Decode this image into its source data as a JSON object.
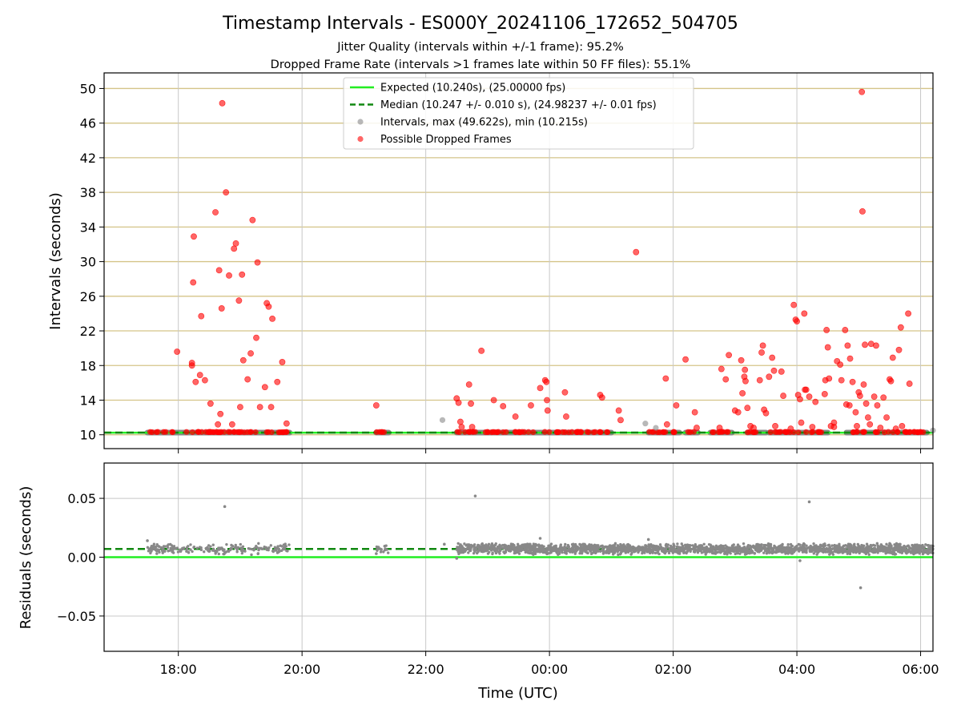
{
  "title": "Timestamp Intervals - ES000Y_20241106_172652_504705",
  "subtitle1": "Jitter Quality (intervals within +/-1 frame): 95.2%",
  "subtitle2": "Dropped Frame Rate (intervals >1 frames late within 50 FF files): 55.1%",
  "colors": {
    "expected": "#22ee22",
    "median": "#118811",
    "intervals": "#888888",
    "dropped": "#ff0000",
    "hgrid": "#d4c488",
    "vgrid": "#c8c8c8"
  },
  "chart_data": [
    {
      "type": "scatter",
      "panel": "top",
      "ylabel": "Intervals (seconds)",
      "ylim": [
        8.4,
        51.8
      ],
      "yticks": [
        "10",
        "14",
        "18",
        "22",
        "26",
        "30",
        "34",
        "38",
        "42",
        "46",
        "50"
      ],
      "xlim_hours": [
        16.8,
        30.2
      ],
      "xticks": [
        "18:00",
        "20:00",
        "22:00",
        "00:00",
        "02:00",
        "04:00",
        "06:00"
      ],
      "grid": "horizontal gold, vertical gray",
      "legend_position": "top-center",
      "legend": [
        "Expected (10.240s), (25.00000 fps)",
        "Median (10.247 +/- 0.010 s), (24.98237 +/- 0.01 fps)",
        "Intervals, max (49.622s), min (10.215s)",
        "Possible Dropped Frames"
      ],
      "expected": 10.24,
      "median": 10.247,
      "baseline_segments_hours": [
        [
          17.5,
          17.9
        ],
        [
          17.9,
          19.8
        ],
        [
          21.2,
          21.4
        ],
        [
          22.5,
          25.0
        ],
        [
          25.6,
          26.1
        ],
        [
          26.2,
          26.4
        ],
        [
          26.6,
          26.95
        ],
        [
          27.2,
          27.5
        ],
        [
          27.55,
          28.5
        ],
        [
          28.8,
          30.1
        ]
      ],
      "intervals_gray": [
        [
          22.27,
          11.7
        ],
        [
          25.55,
          11.3
        ],
        [
          25.72,
          10.8
        ],
        [
          30.2,
          10.5
        ]
      ],
      "dropped_points": [
        [
          17.98,
          19.6
        ],
        [
          18.22,
          18.3
        ],
        [
          18.22,
          18.0
        ],
        [
          18.24,
          27.6
        ],
        [
          18.25,
          32.9
        ],
        [
          18.28,
          16.1
        ],
        [
          18.35,
          16.9
        ],
        [
          18.37,
          23.7
        ],
        [
          18.43,
          16.3
        ],
        [
          18.52,
          13.6
        ],
        [
          18.6,
          35.7
        ],
        [
          18.64,
          11.2
        ],
        [
          18.66,
          29.0
        ],
        [
          18.68,
          12.4
        ],
        [
          18.7,
          24.6
        ],
        [
          18.71,
          48.3
        ],
        [
          18.77,
          38.0
        ],
        [
          18.82,
          28.4
        ],
        [
          18.87,
          11.2
        ],
        [
          18.9,
          31.5
        ],
        [
          18.93,
          32.1
        ],
        [
          18.98,
          25.5
        ],
        [
          19.0,
          13.2
        ],
        [
          19.03,
          28.5
        ],
        [
          19.05,
          18.6
        ],
        [
          19.12,
          16.4
        ],
        [
          19.17,
          19.4
        ],
        [
          19.2,
          34.8
        ],
        [
          19.26,
          21.2
        ],
        [
          19.28,
          29.9
        ],
        [
          19.32,
          13.2
        ],
        [
          19.4,
          15.5
        ],
        [
          19.43,
          25.2
        ],
        [
          19.46,
          24.8
        ],
        [
          19.5,
          13.2
        ],
        [
          19.52,
          23.4
        ],
        [
          19.6,
          16.1
        ],
        [
          19.68,
          18.4
        ],
        [
          19.75,
          11.3
        ],
        [
          21.2,
          13.4
        ],
        [
          22.5,
          14.2
        ],
        [
          22.53,
          13.7
        ],
        [
          22.56,
          11.5
        ],
        [
          22.58,
          10.9
        ],
        [
          22.7,
          15.8
        ],
        [
          22.73,
          13.6
        ],
        [
          22.75,
          10.9
        ],
        [
          22.9,
          19.7
        ],
        [
          23.1,
          14.0
        ],
        [
          23.25,
          13.3
        ],
        [
          23.45,
          12.1
        ],
        [
          23.7,
          13.4
        ],
        [
          23.85,
          15.4
        ],
        [
          23.93,
          16.3
        ],
        [
          23.95,
          16.1
        ],
        [
          23.96,
          14.0
        ],
        [
          23.97,
          12.8
        ],
        [
          24.25,
          14.9
        ],
        [
          24.27,
          12.1
        ],
        [
          24.82,
          14.6
        ],
        [
          24.85,
          14.3
        ],
        [
          25.12,
          12.8
        ],
        [
          25.15,
          11.7
        ],
        [
          25.4,
          31.1
        ],
        [
          25.88,
          16.5
        ],
        [
          25.9,
          11.2
        ],
        [
          26.05,
          13.4
        ],
        [
          26.2,
          18.7
        ],
        [
          26.35,
          12.6
        ],
        [
          26.38,
          10.8
        ],
        [
          26.75,
          10.8
        ],
        [
          26.78,
          17.6
        ],
        [
          26.85,
          16.4
        ],
        [
          26.9,
          19.2
        ],
        [
          27.0,
          12.8
        ],
        [
          27.05,
          12.6
        ],
        [
          27.1,
          18.6
        ],
        [
          27.12,
          14.8
        ],
        [
          27.15,
          16.7
        ],
        [
          27.16,
          17.5
        ],
        [
          27.17,
          16.2
        ],
        [
          27.2,
          13.1
        ],
        [
          27.25,
          11.0
        ],
        [
          27.4,
          16.3
        ],
        [
          27.43,
          19.5
        ],
        [
          27.45,
          20.3
        ],
        [
          27.47,
          12.9
        ],
        [
          27.5,
          12.5
        ],
        [
          27.55,
          16.7
        ],
        [
          27.6,
          18.9
        ],
        [
          27.63,
          17.4
        ],
        [
          27.65,
          11.0
        ],
        [
          27.75,
          17.3
        ],
        [
          27.78,
          14.5
        ],
        [
          27.9,
          10.7
        ],
        [
          27.95,
          25.0
        ],
        [
          27.98,
          23.3
        ],
        [
          28.0,
          23.1
        ],
        [
          28.02,
          14.6
        ],
        [
          28.05,
          14.1
        ],
        [
          28.07,
          11.4
        ],
        [
          28.12,
          24.0
        ],
        [
          28.13,
          15.2
        ],
        [
          28.15,
          15.2
        ],
        [
          28.2,
          14.4
        ],
        [
          28.3,
          13.8
        ],
        [
          28.45,
          14.7
        ],
        [
          28.46,
          16.3
        ],
        [
          28.48,
          22.1
        ],
        [
          28.5,
          20.1
        ],
        [
          28.52,
          16.5
        ],
        [
          28.6,
          11.4
        ],
        [
          28.65,
          18.5
        ],
        [
          28.7,
          18.1
        ],
        [
          28.72,
          16.3
        ],
        [
          28.78,
          22.1
        ],
        [
          28.8,
          13.5
        ],
        [
          28.82,
          20.3
        ],
        [
          28.85,
          13.4
        ],
        [
          28.86,
          18.8
        ],
        [
          28.9,
          16.1
        ],
        [
          28.95,
          12.6
        ],
        [
          29.0,
          14.9
        ],
        [
          29.02,
          14.5
        ],
        [
          29.05,
          49.6
        ],
        [
          29.06,
          35.8
        ],
        [
          29.08,
          15.8
        ],
        [
          29.1,
          20.4
        ],
        [
          29.12,
          13.6
        ],
        [
          29.15,
          12.0
        ],
        [
          29.18,
          11.2
        ],
        [
          29.2,
          20.5
        ],
        [
          29.25,
          14.4
        ],
        [
          29.28,
          20.3
        ],
        [
          29.3,
          13.4
        ],
        [
          29.4,
          14.3
        ],
        [
          29.45,
          12.0
        ],
        [
          29.5,
          16.4
        ],
        [
          29.52,
          16.2
        ],
        [
          29.55,
          18.9
        ],
        [
          29.6,
          10.7
        ],
        [
          29.65,
          19.8
        ],
        [
          29.68,
          22.4
        ],
        [
          29.7,
          11.0
        ],
        [
          29.8,
          24.0
        ],
        [
          29.82,
          15.9
        ],
        [
          28.55,
          11.0
        ],
        [
          28.6,
          10.9
        ],
        [
          27.3,
          10.8
        ],
        [
          28.25,
          10.9
        ],
        [
          28.97,
          11.0
        ],
        [
          29.35,
          10.8
        ]
      ]
    },
    {
      "type": "scatter",
      "panel": "bottom",
      "ylabel": "Residuals (seconds)",
      "xlabel": "Time (UTC)",
      "ylim": [
        -0.08,
        0.08
      ],
      "yticks": [
        "0.05",
        "0.00",
        "−0.05"
      ],
      "ytick_values": [
        0.05,
        0.0,
        -0.05
      ],
      "xlim_hours": [
        16.8,
        30.2
      ],
      "xticks": [
        "18:00",
        "20:00",
        "22:00",
        "00:00",
        "02:00",
        "04:00",
        "06:00"
      ],
      "expected_residual": 0.0,
      "median_residual": 0.007,
      "residual_band_segments_hours": [
        [
          17.5,
          19.8
        ],
        [
          21.2,
          21.4
        ],
        [
          22.5,
          30.2
        ]
      ],
      "residual_band_center": 0.007,
      "residual_band_spread": 0.005,
      "residual_outliers": [
        [
          17.5,
          0.014
        ],
        [
          18.75,
          0.043
        ],
        [
          22.8,
          0.052
        ],
        [
          28.2,
          0.047
        ],
        [
          29.03,
          -0.026
        ],
        [
          28.05,
          -0.003
        ],
        [
          22.5,
          -0.001
        ],
        [
          21.2,
          0.003
        ],
        [
          22.3,
          0.011
        ],
        [
          23.85,
          0.016
        ],
        [
          25.6,
          0.015
        ]
      ]
    }
  ]
}
